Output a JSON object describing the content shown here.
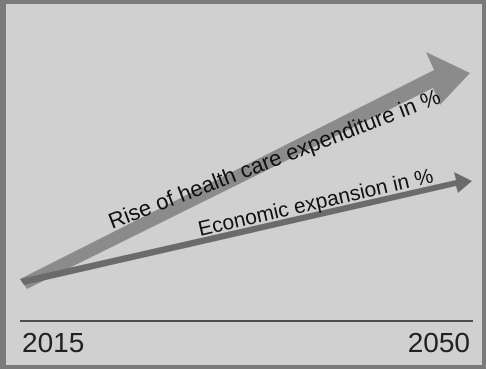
{
  "diagram": {
    "arrows": [
      {
        "label": "Rise of health care expenditure in %",
        "color": "#8b8b8b"
      },
      {
        "label": "Economic expansion in %",
        "color": "#6b6b6b"
      }
    ],
    "axis": {
      "start_label": "2015",
      "end_label": "2050"
    }
  }
}
